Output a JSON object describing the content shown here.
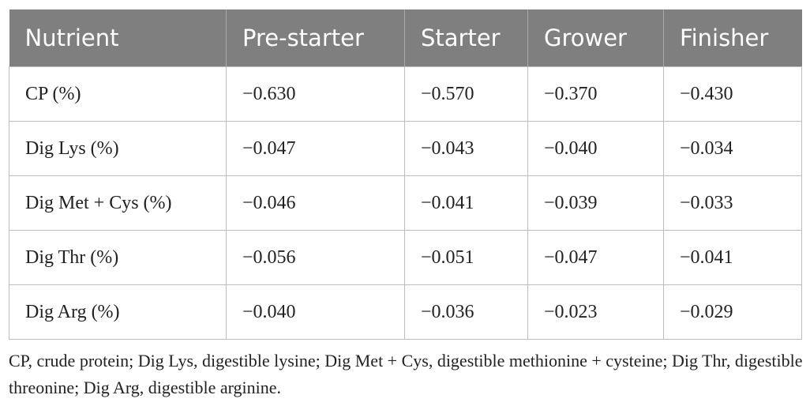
{
  "table": {
    "header": [
      "Nutrient",
      "Pre-starter",
      "Starter",
      "Grower",
      "Finisher"
    ],
    "rows": [
      [
        "CP (%)",
        "−0.630",
        "−0.570",
        "−0.370",
        "−0.430"
      ],
      [
        "Dig Lys (%)",
        "−0.047",
        "−0.043",
        "−0.040",
        "−0.034"
      ],
      [
        "Dig Met + Cys (%)",
        "−0.046",
        "−0.041",
        "−0.039",
        "−0.033"
      ],
      [
        "Dig Thr (%)",
        "−0.056",
        "−0.051",
        "−0.047",
        "−0.041"
      ],
      [
        "Dig Arg (%)",
        "−0.040",
        "−0.036",
        "−0.023",
        "−0.029"
      ]
    ]
  },
  "footnote": "CP, crude protein; Dig Lys, digestible lysine; Dig Met + Cys, digestible methionine + cysteine; Dig Thr, digestible threonine; Dig Arg, digestible arginine."
}
